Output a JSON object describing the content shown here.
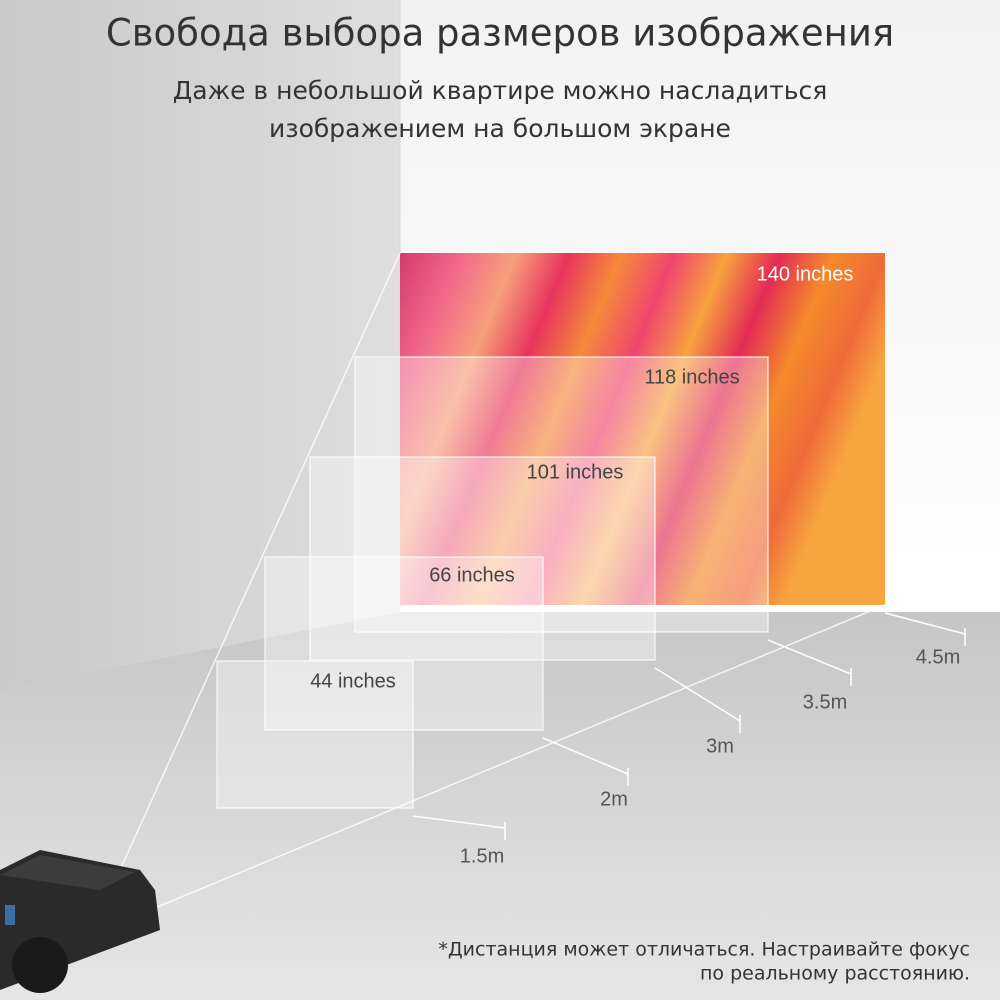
{
  "header": {
    "title": "Свобода выбора размеров изображения",
    "subtitle": [
      "Даже в небольшой квартире можно насладиться",
      "изображением на большом экране"
    ]
  },
  "screens": [
    {
      "size": "140 inches",
      "distance": "4.5m"
    },
    {
      "size": "118 inches",
      "distance": "3.5m"
    },
    {
      "size": "101 inches",
      "distance": "3m"
    },
    {
      "size": "66 inches",
      "distance": "2m"
    },
    {
      "size": "44 inches",
      "distance": "1.5m"
    }
  ],
  "footnote": [
    "*Дистанция может отличаться. Настраивайте фокус",
    "по реальному расстоянию."
  ]
}
